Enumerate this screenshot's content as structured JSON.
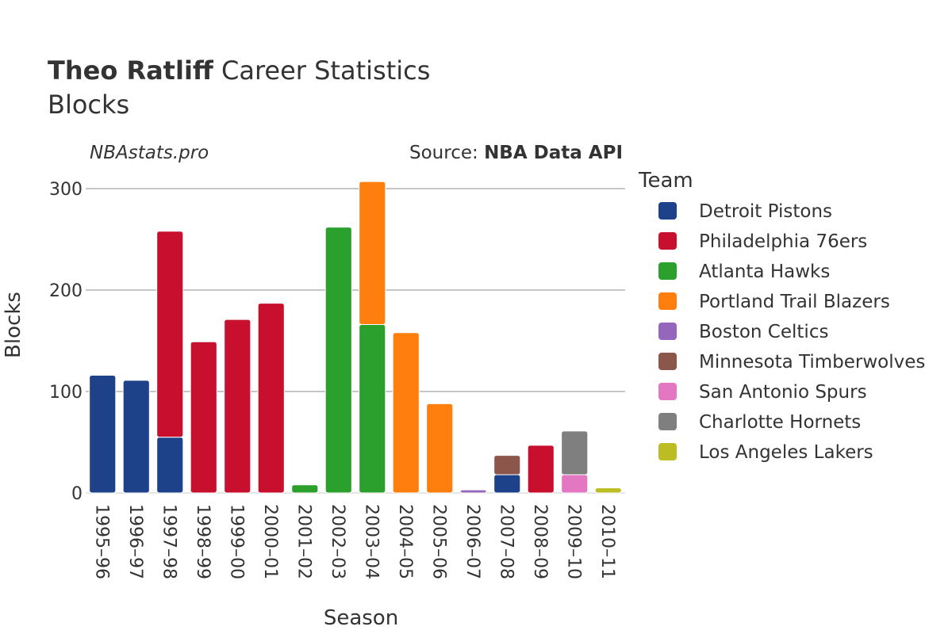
{
  "title": {
    "bold": "Theo Ratliff",
    "rest": " Career Statistics",
    "subtitle": "Blocks"
  },
  "watermark": "NBAstats.pro",
  "source": {
    "prefix": "Source: ",
    "name": "NBA Data API"
  },
  "legend_title": "Team",
  "colors": {
    "Detroit Pistons": "#1d428a",
    "Philadelphia 76ers": "#c8102e",
    "Atlanta Hawks": "#2ca02c",
    "Portland Trail Blazers": "#ff7f0e",
    "Boston Celtics": "#9467bd",
    "Minnesota Timberwolves": "#8c564b",
    "San Antonio Spurs": "#e377c2",
    "Charlotte Hornets": "#7f7f7f",
    "Los Angeles Lakers": "#bcbd22"
  },
  "chart_data": {
    "type": "bar",
    "stacked": true,
    "xlabel": "Season",
    "ylabel": "Blocks",
    "ylim": [
      0,
      318
    ],
    "yticks": [
      0,
      100,
      200,
      300
    ],
    "categories": [
      "1995–96",
      "1996–97",
      "1997–98",
      "1998–99",
      "1999–00",
      "2000–01",
      "2001–02",
      "2002–03",
      "2003–04",
      "2004–05",
      "2005–06",
      "2006–07",
      "2007–08",
      "2008–09",
      "2009–10",
      "2010–11"
    ],
    "series": [
      {
        "name": "Detroit Pistons",
        "values": [
          116,
          111,
          55,
          0,
          0,
          0,
          0,
          0,
          0,
          0,
          0,
          0,
          18,
          0,
          0,
          0
        ]
      },
      {
        "name": "Philadelphia 76ers",
        "values": [
          0,
          0,
          203,
          149,
          171,
          187,
          0,
          0,
          0,
          0,
          0,
          0,
          0,
          47,
          0,
          0
        ]
      },
      {
        "name": "Atlanta Hawks",
        "values": [
          0,
          0,
          0,
          0,
          0,
          0,
          8,
          262,
          166,
          0,
          0,
          0,
          0,
          0,
          0,
          0
        ]
      },
      {
        "name": "Portland Trail Blazers",
        "values": [
          0,
          0,
          0,
          0,
          0,
          0,
          0,
          0,
          141,
          158,
          88,
          0,
          0,
          0,
          0,
          0
        ]
      },
      {
        "name": "Boston Celtics",
        "values": [
          0,
          0,
          0,
          0,
          0,
          0,
          0,
          0,
          0,
          0,
          0,
          3,
          0,
          0,
          0,
          0
        ]
      },
      {
        "name": "Minnesota Timberwolves",
        "values": [
          0,
          0,
          0,
          0,
          0,
          0,
          0,
          0,
          0,
          0,
          0,
          0,
          19,
          0,
          0,
          0
        ]
      },
      {
        "name": "San Antonio Spurs",
        "values": [
          0,
          0,
          0,
          0,
          0,
          0,
          0,
          0,
          0,
          0,
          0,
          0,
          0,
          0,
          18,
          0
        ]
      },
      {
        "name": "Charlotte Hornets",
        "values": [
          0,
          0,
          0,
          0,
          0,
          0,
          0,
          0,
          0,
          0,
          0,
          0,
          0,
          0,
          43,
          0
        ]
      },
      {
        "name": "Los Angeles Lakers",
        "values": [
          0,
          0,
          0,
          0,
          0,
          0,
          0,
          0,
          0,
          0,
          0,
          0,
          0,
          0,
          0,
          5
        ]
      }
    ],
    "legend_position": "right"
  }
}
